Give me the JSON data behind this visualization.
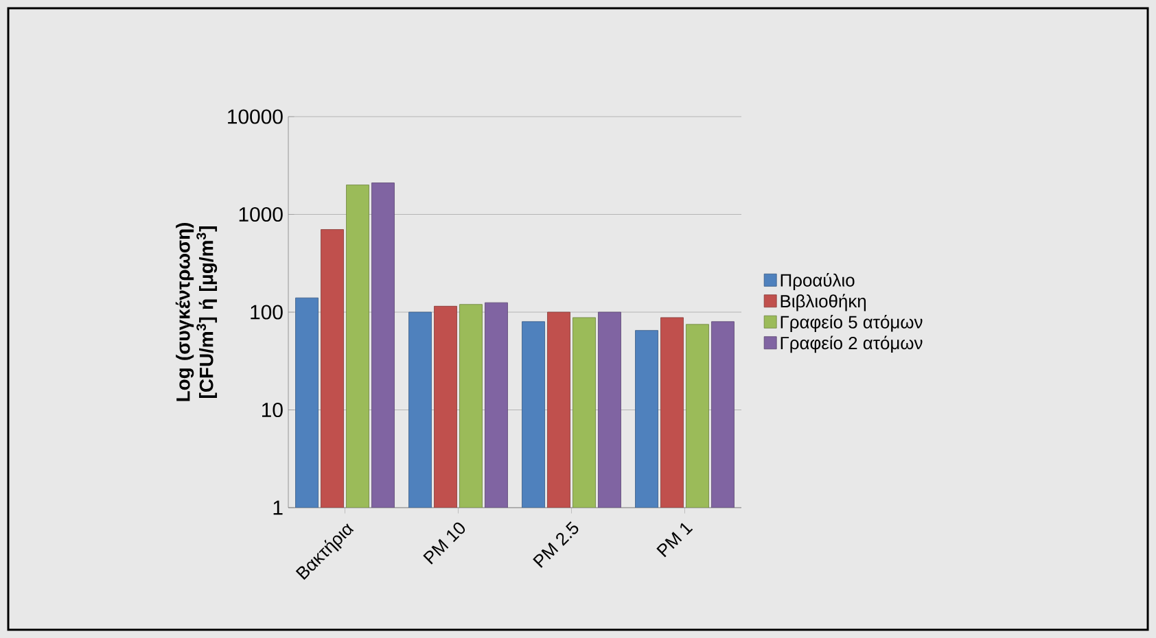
{
  "chart_data": {
    "type": "bar",
    "ylabel": "Log (συγκέντρωση) [CFU/m$^{3}$] ή [μg/m$^{3}$]",
    "categories": [
      "Βακτήρια",
      "PM 10",
      "PM 2.5",
      "PM 1"
    ],
    "series": [
      {
        "name": "Προαύλιο",
        "color": "#4f81bd",
        "values": [
          140,
          100,
          80,
          65
        ]
      },
      {
        "name": "Βιβλιοθήκη",
        "color": "#c0504d",
        "values": [
          700,
          115,
          100,
          88
        ]
      },
      {
        "name": "Γραφείο 5 ατόμων",
        "color": "#9bbb59",
        "values": [
          2000,
          120,
          88,
          75
        ]
      },
      {
        "name": "Γραφείο 2 ατόμων",
        "color": "#8064a2",
        "values": [
          2100,
          125,
          100,
          80
        ]
      }
    ],
    "log": "y",
    "ylim": [
      1,
      10000
    ],
    "yticks": [
      1,
      10,
      100,
      1000,
      10000
    ],
    "grid": "y",
    "legend": "right"
  }
}
